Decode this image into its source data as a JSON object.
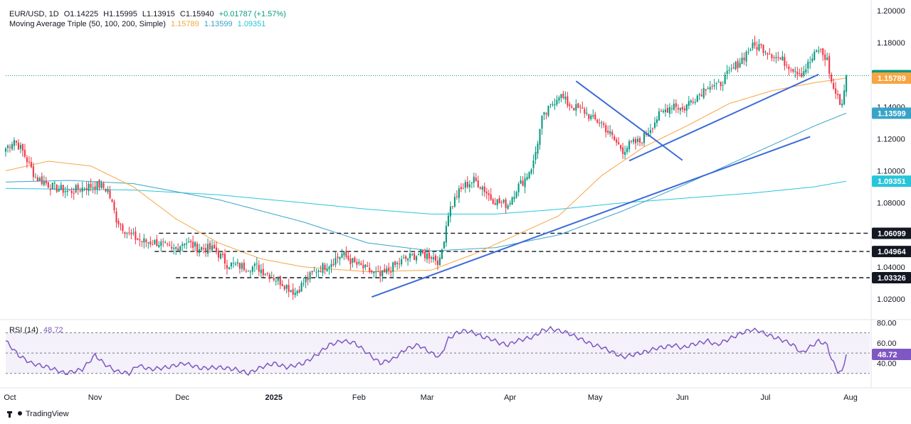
{
  "header": {
    "symbol": "EUR/USD, 1D",
    "open": "O1.14225",
    "high": "H1.15995",
    "low": "L1.13915",
    "close": "C1.15940",
    "change": "+0.01787 (+1.57%)",
    "ma_label": "Moving Average Triple (50, 100, 200, Simple)",
    "ma50": "1.15789",
    "ma100": "1.13599",
    "ma200": "1.09351"
  },
  "rsi_label": "RSI (14)",
  "rsi_value": "48.72",
  "brand": "TradingView",
  "colors": {
    "up": "#089981",
    "down": "#f23645",
    "ma50": "#f7a541",
    "ma100": "#38a3c9",
    "ma200": "#26c6da",
    "trendline": "#3c6ad8",
    "rsi": "#7e57c2",
    "rsi_band": "#ede7f6"
  },
  "chart_data": [
    {
      "type": "candlestick",
      "title": "EUR/USD, 1D",
      "y_ticks": [
        "1.02000",
        "1.04000",
        "1.08000",
        "1.10000",
        "1.12000",
        "1.14000",
        "1.16000",
        "1.18000",
        "1.20000"
      ],
      "ylim": [
        1.0071,
        1.2031
      ],
      "x_labels": [
        "Oct",
        "Nov",
        "Dec",
        "2025",
        "Feb",
        "Mar",
        "Apr",
        "May",
        "Jun",
        "Jul",
        "Aug"
      ],
      "x_label_positions_days": [
        2,
        42,
        83,
        126,
        166,
        198,
        237,
        277,
        318,
        357,
        397
      ],
      "price_labels": [
        {
          "text": "1.15940",
          "value": 1.1594,
          "color": "#089981"
        },
        {
          "text": "1.15789",
          "value": 1.15789,
          "color": "#f7a541"
        },
        {
          "text": "1.13599",
          "value": 1.13599,
          "color": "#38a3c9"
        },
        {
          "text": "1.09351",
          "value": 1.09351,
          "color": "#26c6da"
        },
        {
          "text": "1.06099",
          "value": 1.06099,
          "color": "#131722"
        },
        {
          "text": "1.04964",
          "value": 1.04964,
          "color": "#131722"
        },
        {
          "text": "1.03326",
          "value": 1.03326,
          "color": "#131722"
        }
      ],
      "horizontal_levels": [
        {
          "value": 1.06099,
          "from_day": 72
        },
        {
          "value": 1.04964,
          "from_day": 70
        },
        {
          "value": 1.03326,
          "from_day": 80
        }
      ],
      "last_price": 1.1594,
      "trendlines": [
        {
          "x1": 172,
          "y1": 1.0212,
          "x2": 378,
          "y2": 1.1213
        },
        {
          "x1": 293,
          "y1": 1.1063,
          "x2": 382,
          "y2": 1.1602
        },
        {
          "x1": 268,
          "y1": 1.156,
          "x2": 318,
          "y2": 1.1066
        }
      ],
      "ohlc_keypoints": [
        [
          0,
          1.114
        ],
        [
          4,
          1.1195
        ],
        [
          8,
          1.112
        ],
        [
          14,
          1.096
        ],
        [
          22,
          1.09
        ],
        [
          30,
          1.087
        ],
        [
          38,
          1.09
        ],
        [
          44,
          1.091
        ],
        [
          48,
          1.088
        ],
        [
          52,
          1.07
        ],
        [
          58,
          1.06
        ],
        [
          64,
          1.056
        ],
        [
          72,
          1.055
        ],
        [
          78,
          1.05
        ],
        [
          84,
          1.056
        ],
        [
          90,
          1.052
        ],
        [
          98,
          1.051
        ],
        [
          104,
          1.042
        ],
        [
          112,
          1.04
        ],
        [
          118,
          1.04
        ],
        [
          124,
          1.035
        ],
        [
          130,
          1.03
        ],
        [
          136,
          1.024
        ],
        [
          140,
          1.03
        ],
        [
          146,
          1.038
        ],
        [
          152,
          1.042
        ],
        [
          158,
          1.048
        ],
        [
          164,
          1.042
        ],
        [
          170,
          1.038
        ],
        [
          176,
          1.034
        ],
        [
          182,
          1.04
        ],
        [
          188,
          1.045
        ],
        [
          194,
          1.048
        ],
        [
          200,
          1.047
        ],
        [
          204,
          1.043
        ],
        [
          208,
          1.074
        ],
        [
          212,
          1.085
        ],
        [
          216,
          1.091
        ],
        [
          220,
          1.094
        ],
        [
          224,
          1.09
        ],
        [
          228,
          1.083
        ],
        [
          232,
          1.08
        ],
        [
          236,
          1.079
        ],
        [
          240,
          1.089
        ],
        [
          244,
          1.095
        ],
        [
          248,
          1.105
        ],
        [
          252,
          1.132
        ],
        [
          256,
          1.14
        ],
        [
          260,
          1.148
        ],
        [
          264,
          1.142
        ],
        [
          268,
          1.139
        ],
        [
          272,
          1.137
        ],
        [
          276,
          1.132
        ],
        [
          280,
          1.13
        ],
        [
          286,
          1.119
        ],
        [
          290,
          1.113
        ],
        [
          294,
          1.117
        ],
        [
          298,
          1.118
        ],
        [
          302,
          1.125
        ],
        [
          306,
          1.133
        ],
        [
          310,
          1.138
        ],
        [
          314,
          1.142
        ],
        [
          318,
          1.138
        ],
        [
          322,
          1.144
        ],
        [
          326,
          1.148
        ],
        [
          330,
          1.154
        ],
        [
          334,
          1.152
        ],
        [
          338,
          1.158
        ],
        [
          342,
          1.164
        ],
        [
          346,
          1.17
        ],
        [
          350,
          1.177
        ],
        [
          354,
          1.178
        ],
        [
          358,
          1.175
        ],
        [
          362,
          1.171
        ],
        [
          366,
          1.168
        ],
        [
          370,
          1.164
        ],
        [
          374,
          1.161
        ],
        [
          378,
          1.168
        ],
        [
          382,
          1.176
        ],
        [
          386,
          1.169
        ],
        [
          388,
          1.155
        ],
        [
          391,
          1.145
        ],
        [
          393,
          1.142
        ],
        [
          395,
          1.1594
        ]
      ],
      "moving_averages": [
        {
          "name": "MA 50",
          "period": 50,
          "color": "#f7a541"
        },
        {
          "name": "MA 100",
          "period": 100,
          "color": "#38a3c9"
        },
        {
          "name": "MA 200",
          "period": 200,
          "color": "#26c6da"
        }
      ]
    },
    {
      "type": "line",
      "title": "RSI (14)",
      "y_ticks": [
        "40.00",
        "60.00",
        "80.00"
      ],
      "ylim": [
        20,
        83
      ],
      "bands": {
        "upper": 70,
        "middle": 50,
        "lower": 30
      },
      "last_value": 48.72,
      "keypoints": [
        [
          0,
          62
        ],
        [
          6,
          48
        ],
        [
          12,
          40
        ],
        [
          20,
          36
        ],
        [
          28,
          30
        ],
        [
          36,
          34
        ],
        [
          42,
          48
        ],
        [
          46,
          40
        ],
        [
          52,
          32
        ],
        [
          58,
          30
        ],
        [
          62,
          38
        ],
        [
          68,
          34
        ],
        [
          76,
          36
        ],
        [
          84,
          40
        ],
        [
          92,
          35
        ],
        [
          100,
          36
        ],
        [
          108,
          34
        ],
        [
          114,
          30
        ],
        [
          120,
          36
        ],
        [
          126,
          40
        ],
        [
          132,
          36
        ],
        [
          140,
          40
        ],
        [
          146,
          48
        ],
        [
          152,
          58
        ],
        [
          158,
          62
        ],
        [
          164,
          60
        ],
        [
          170,
          50
        ],
        [
          176,
          40
        ],
        [
          182,
          44
        ],
        [
          188,
          54
        ],
        [
          194,
          58
        ],
        [
          200,
          50
        ],
        [
          204,
          46
        ],
        [
          208,
          64
        ],
        [
          212,
          70
        ],
        [
          216,
          72
        ],
        [
          220,
          70
        ],
        [
          224,
          66
        ],
        [
          228,
          64
        ],
        [
          232,
          60
        ],
        [
          236,
          58
        ],
        [
          240,
          62
        ],
        [
          244,
          64
        ],
        [
          248,
          66
        ],
        [
          252,
          72
        ],
        [
          256,
          74
        ],
        [
          260,
          72
        ],
        [
          264,
          70
        ],
        [
          268,
          66
        ],
        [
          272,
          62
        ],
        [
          276,
          58
        ],
        [
          280,
          56
        ],
        [
          286,
          50
        ],
        [
          290,
          46
        ],
        [
          294,
          48
        ],
        [
          298,
          50
        ],
        [
          302,
          52
        ],
        [
          306,
          55
        ],
        [
          310,
          56
        ],
        [
          314,
          58
        ],
        [
          318,
          55
        ],
        [
          322,
          58
        ],
        [
          326,
          60
        ],
        [
          330,
          62
        ],
        [
          334,
          58
        ],
        [
          338,
          62
        ],
        [
          342,
          66
        ],
        [
          346,
          70
        ],
        [
          350,
          73
        ],
        [
          354,
          72
        ],
        [
          358,
          68
        ],
        [
          362,
          65
        ],
        [
          366,
          62
        ],
        [
          370,
          58
        ],
        [
          374,
          50
        ],
        [
          378,
          56
        ],
        [
          382,
          62
        ],
        [
          386,
          58
        ],
        [
          388,
          44
        ],
        [
          391,
          32
        ],
        [
          393,
          31
        ],
        [
          395,
          48.72
        ]
      ]
    }
  ]
}
